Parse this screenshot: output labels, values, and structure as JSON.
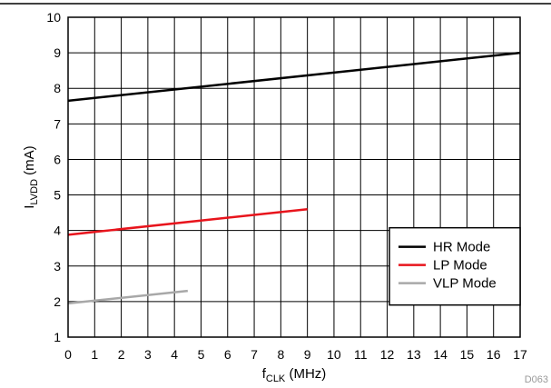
{
  "chart_data": {
    "type": "line",
    "xlabel": {
      "main": "f",
      "sub": "CLK",
      "tail": " (MHz)"
    },
    "ylabel": {
      "main": "I",
      "sub": "LVDD",
      "tail": " (mA)"
    },
    "xlim": [
      0,
      17
    ],
    "ylim": [
      1,
      10
    ],
    "xticks": [
      "0",
      "1",
      "2",
      "3",
      "4",
      "5",
      "6",
      "7",
      "8",
      "9",
      "10",
      "11",
      "12",
      "13",
      "14",
      "15",
      "16",
      "17"
    ],
    "yticks": [
      "1",
      "2",
      "3",
      "4",
      "5",
      "6",
      "7",
      "8",
      "9",
      "10"
    ],
    "grid": true,
    "legend_position": "bottom-right",
    "series": [
      {
        "name": "HR Mode",
        "color": "#000000",
        "x": [
          0,
          17
        ],
        "y": [
          7.65,
          9.0
        ]
      },
      {
        "name": "LP Mode",
        "color": "#e8141c",
        "x": [
          0,
          9
        ],
        "y": [
          3.88,
          4.6
        ]
      },
      {
        "name": "VLP Mode",
        "color": "#a8a8a8",
        "x": [
          0,
          4.5
        ],
        "y": [
          1.95,
          2.3
        ]
      }
    ],
    "note": "D063"
  }
}
